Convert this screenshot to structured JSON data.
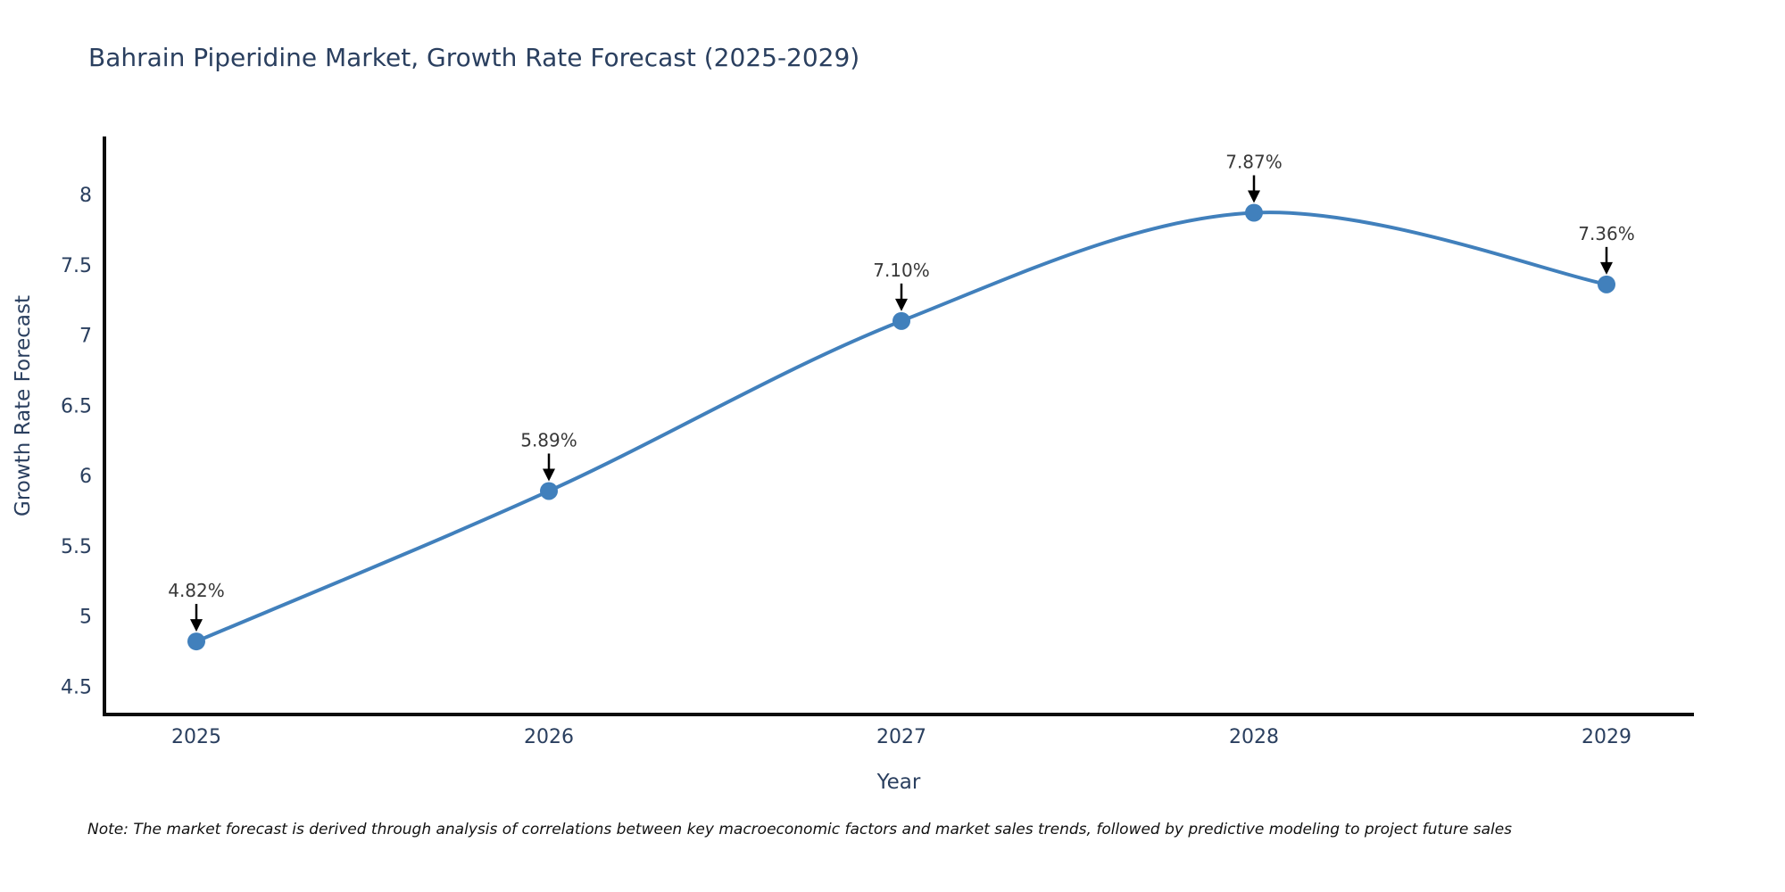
{
  "title": "Bahrain Piperidine Market, Growth Rate Forecast (2025-2029)",
  "note": "Note: The market forecast is derived through analysis of correlations between key macroeconomic factors and market sales trends, followed by predictive modeling to project future sales",
  "chart_data": {
    "type": "line",
    "title": "Bahrain Piperidine Market, Growth Rate Forecast (2025-2029)",
    "categories": [
      "2025",
      "2026",
      "2027",
      "2028",
      "2029"
    ],
    "values": [
      4.82,
      5.89,
      7.1,
      7.87,
      7.36
    ],
    "point_labels": [
      "4.82%",
      "5.89%",
      "7.10%",
      "7.87%",
      "7.36%"
    ],
    "xlabel": "Year",
    "ylabel": "Growth Rate Forecast",
    "yticks": [
      4.5,
      5,
      5.5,
      6,
      6.5,
      7,
      7.5,
      8
    ],
    "ylim": [
      4.3,
      8.4
    ],
    "line_shape": "spline",
    "grid": false,
    "legend_position": "none",
    "colors": {
      "line": "#4180BC",
      "marker": "#4180BC",
      "axis_line": "#0c0c0c",
      "tick_text": "#2a3f5f",
      "annotation_text": "#383838",
      "annotation_arrow": "#000000",
      "background": "#ffffff"
    }
  }
}
